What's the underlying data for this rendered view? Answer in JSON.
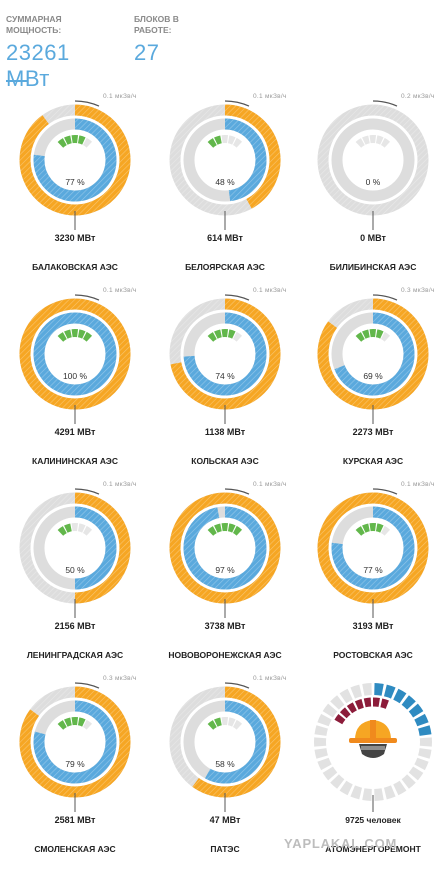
{
  "summary": {
    "power_label": "СУММАРНАЯ МОЩНОСТЬ:",
    "power_value": "23261 МВт",
    "units_label": "БЛОКОВ В РАБОТЕ:",
    "units_value": "27"
  },
  "colors": {
    "orange": "#f6a623",
    "blue": "#5aa9dd",
    "green": "#62b74b",
    "gray": "#dddddd",
    "dark_red": "#8c1c3a",
    "teal_blue": "#2f8bc1"
  },
  "stations": [
    {
      "name": "БАЛАКОВСКАЯ АЭС",
      "mkzv": "0.1 мкЗв/ч",
      "percent_label": "77 %",
      "power": "3230 МВт",
      "load": 0.77,
      "capacity": 0.9
    },
    {
      "name": "БЕЛОЯРСКАЯ АЭС",
      "mkzv": "0.1 мкЗв/ч",
      "percent_label": "48 %",
      "power": "614 МВт",
      "load": 0.48,
      "capacity": 0.42
    },
    {
      "name": "БИЛИБИНСКАЯ АЭС",
      "mkzv": "0.2 мкЗв/ч",
      "percent_label": "0 %",
      "power": "0 МВт",
      "load": 0,
      "capacity": 0
    },
    {
      "name": "КАЛИНИНСКАЯ АЭС",
      "mkzv": "0.1 мкЗв/ч",
      "percent_label": "100 %",
      "power": "4291 МВт",
      "load": 1,
      "capacity": 1
    },
    {
      "name": "КОЛЬСКАЯ АЭС",
      "mkzv": "0.1 мкЗв/ч",
      "percent_label": "74 %",
      "power": "1138 МВт",
      "load": 0.74,
      "capacity": 0.72
    },
    {
      "name": "КУРСКАЯ АЭС",
      "mkzv": "0.3 мкЗв/ч",
      "percent_label": "69 %",
      "power": "2273 МВт",
      "load": 0.69,
      "capacity": 0.85
    },
    {
      "name": "ЛЕНИНГРАДСКАЯ АЭС",
      "mkzv": "0.1 мкЗв/ч",
      "percent_label": "50 %",
      "power": "2156 МВт",
      "load": 0.5,
      "capacity": 0.5
    },
    {
      "name": "НОВОВОРОНЕЖСКАЯ АЭС",
      "mkzv": "0.1 мкЗв/ч",
      "percent_label": "97 %",
      "power": "3738 МВт",
      "load": 0.97,
      "capacity": 1
    },
    {
      "name": "РОСТОВСКАЯ АЭС",
      "mkzv": "0.1 мкЗв/ч",
      "percent_label": "77 %",
      "power": "3193 МВт",
      "load": 0.77,
      "capacity": 1
    },
    {
      "name": "СМОЛЕНСКАЯ АЭС",
      "mkzv": "0.3 мкЗв/ч",
      "percent_label": "79 %",
      "power": "2581 МВт",
      "load": 0.79,
      "capacity": 0.85
    },
    {
      "name": "ПАТЭС",
      "mkzv": "0.1 мкЗв/ч",
      "percent_label": "58 %",
      "power": "47 МВт",
      "load": 0.58,
      "capacity": 0.6
    }
  ],
  "atom": {
    "name": "АТОМЭНЕРГОРЕМОНТ",
    "value": "9725 человек",
    "icon": "hardhat-worker-icon"
  },
  "watermark": "YAPLAKAL.COM"
}
